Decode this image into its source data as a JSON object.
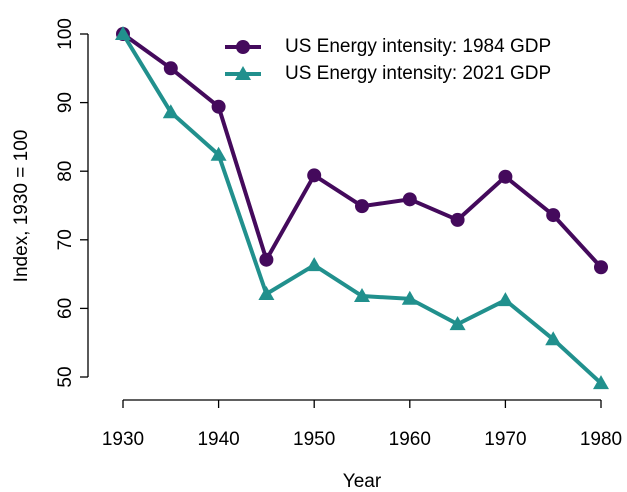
{
  "chart_data": {
    "type": "line",
    "x": [
      1930,
      1935,
      1940,
      1945,
      1950,
      1955,
      1960,
      1965,
      1970,
      1975,
      1980
    ],
    "series": [
      {
        "name": "US Energy intensity: 1984 GDP",
        "color": "#440a5c",
        "marker": "circle",
        "values": [
          100,
          95.0,
          89.4,
          67.1,
          79.4,
          74.9,
          75.9,
          72.9,
          79.2,
          73.6,
          66.0
        ]
      },
      {
        "name": "US Energy intensity: 2021 GDP",
        "color": "#21908d",
        "marker": "triangle",
        "values": [
          100,
          88.6,
          82.4,
          62.1,
          66.3,
          61.8,
          61.4,
          57.7,
          61.2,
          55.5,
          49.1
        ]
      }
    ],
    "xlabel": "Year",
    "ylabel": "Index, 1930 = 100",
    "xlim": [
      1930,
      1980
    ],
    "xticks": [
      1930,
      1940,
      1950,
      1960,
      1970,
      1980
    ],
    "ylim": [
      50,
      100
    ],
    "yticks": [
      50,
      60,
      70,
      80,
      90,
      100
    ],
    "grid": false,
    "legend": "top-right"
  }
}
